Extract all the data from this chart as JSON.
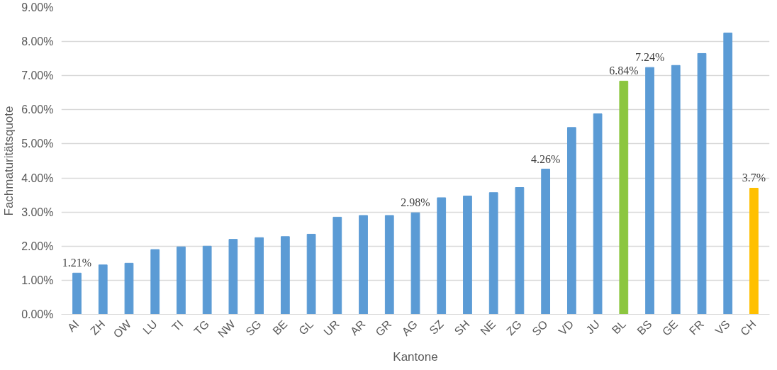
{
  "chart_data": {
    "type": "bar",
    "xlabel": "Kantone",
    "ylabel": "Fachmaturitätsquote",
    "categories": [
      "AI",
      "ZH",
      "OW",
      "LU",
      "TI",
      "TG",
      "NW",
      "SG",
      "BE",
      "GL",
      "UR",
      "AR",
      "GR",
      "AG",
      "SZ",
      "SH",
      "NE",
      "ZG",
      "SO",
      "VD",
      "JU",
      "BL",
      "BS",
      "GE",
      "FR",
      "VS",
      "CH"
    ],
    "values": [
      1.21,
      1.45,
      1.5,
      1.9,
      1.98,
      2.0,
      2.2,
      2.25,
      2.28,
      2.35,
      2.85,
      2.9,
      2.9,
      2.98,
      3.42,
      3.47,
      3.57,
      3.72,
      4.26,
      5.48,
      5.88,
      6.84,
      7.24,
      7.3,
      7.65,
      8.25,
      3.7
    ],
    "colors": [
      "#5b9bd5",
      "#5b9bd5",
      "#5b9bd5",
      "#5b9bd5",
      "#5b9bd5",
      "#5b9bd5",
      "#5b9bd5",
      "#5b9bd5",
      "#5b9bd5",
      "#5b9bd5",
      "#5b9bd5",
      "#5b9bd5",
      "#5b9bd5",
      "#5b9bd5",
      "#5b9bd5",
      "#5b9bd5",
      "#5b9bd5",
      "#5b9bd5",
      "#5b9bd5",
      "#5b9bd5",
      "#5b9bd5",
      "#8cc63f",
      "#5b9bd5",
      "#5b9bd5",
      "#5b9bd5",
      "#5b9bd5",
      "#ffc000"
    ],
    "value_labels": [
      "1.21%",
      null,
      null,
      null,
      null,
      null,
      null,
      null,
      null,
      null,
      null,
      null,
      null,
      "2.98%",
      null,
      null,
      null,
      null,
      "4.26%",
      null,
      null,
      "6.84%",
      "7.24%",
      null,
      null,
      null,
      "3.7%"
    ],
    "ylim": [
      0,
      9
    ],
    "yticks": [
      {
        "value": 0,
        "label": "0.00%"
      },
      {
        "value": 1,
        "label": "1.00%"
      },
      {
        "value": 2,
        "label": "2.00%"
      },
      {
        "value": 3,
        "label": "3.00%"
      },
      {
        "value": 4,
        "label": "4.00%"
      },
      {
        "value": 5,
        "label": "5.00%"
      },
      {
        "value": 6,
        "label": "6.00%"
      },
      {
        "value": 7,
        "label": "7.00%"
      },
      {
        "value": 8,
        "label": "8.00%"
      },
      {
        "value": 9,
        "label": "9.00%"
      }
    ],
    "grid": "y"
  }
}
